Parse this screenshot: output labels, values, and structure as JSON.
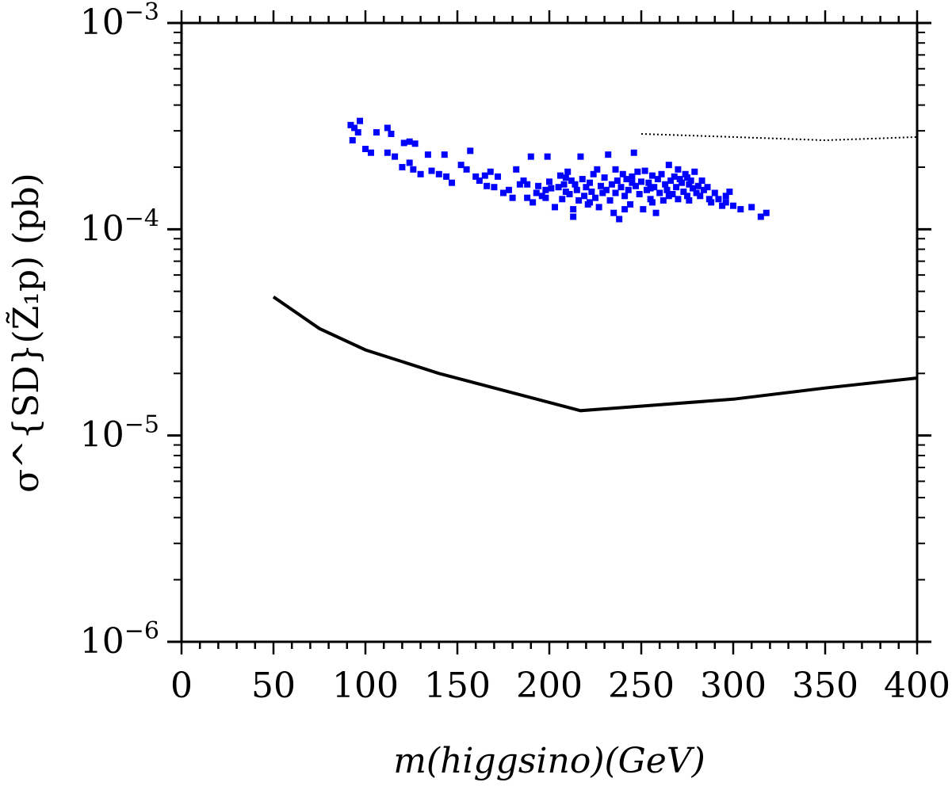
{
  "chart_data": {
    "type": "scatter",
    "xlabel": "m(higgsino)(GeV)",
    "ylabel": "σ^{SD}(Z̃₁p) (pb)",
    "x_ticks": [
      "0",
      "50",
      "100",
      "150",
      "200",
      "250",
      "300",
      "350",
      "400"
    ],
    "y_ticks": [
      {
        "base": "10",
        "exp": "−3",
        "value": 0.001
      },
      {
        "base": "10",
        "exp": "−4",
        "value": 0.0001
      },
      {
        "base": "10",
        "exp": "−5",
        "value": 1e-05
      },
      {
        "base": "10",
        "exp": "−6",
        "value": 1e-06
      }
    ],
    "xlim": [
      0,
      400
    ],
    "ylim": [
      1e-06,
      0.001
    ],
    "yscale": "log",
    "grid": false,
    "colors": {
      "points": "#0000ff",
      "lines": "#000000"
    },
    "series": [
      {
        "style": "scatter",
        "points": [
          [
            92,
            0.00032
          ],
          [
            93,
            0.00027
          ],
          [
            94,
            0.00031
          ],
          [
            97,
            0.000335
          ],
          [
            96,
            0.000295
          ],
          [
            100,
            0.000245
          ],
          [
            103,
            0.000235
          ],
          [
            106,
            0.000295
          ],
          [
            112,
            0.00031
          ],
          [
            114,
            0.00029
          ],
          [
            112,
            0.000235
          ],
          [
            116,
            0.000225
          ],
          [
            121,
            0.000262
          ],
          [
            124,
            0.000266
          ],
          [
            127,
            0.00026
          ],
          [
            120,
            0.0002
          ],
          [
            124,
            0.00021
          ],
          [
            126,
            0.000195
          ],
          [
            130,
            0.000185
          ],
          [
            134,
            0.00023
          ],
          [
            136,
            0.000192
          ],
          [
            140,
            0.000185
          ],
          [
            143,
            0.00023
          ],
          [
            144,
            0.00018
          ],
          [
            147,
            0.000168
          ],
          [
            152,
            0.000205
          ],
          [
            155,
            0.000195
          ],
          [
            157,
            0.00024
          ],
          [
            160,
            0.00018
          ],
          [
            162,
            0.000172
          ],
          [
            165,
            0.000182
          ],
          [
            168,
            0.00019
          ],
          [
            170,
            0.00016
          ],
          [
            172,
            0.00018
          ],
          [
            175,
            0.00015
          ],
          [
            178,
            0.000155
          ],
          [
            180,
            0.000142
          ],
          [
            182,
            0.000195
          ],
          [
            184,
            0.000165
          ],
          [
            186,
            0.000172
          ],
          [
            188,
            0.000142
          ],
          [
            190,
            0.000225
          ],
          [
            191,
            0.000135
          ],
          [
            193,
            0.00015
          ],
          [
            194,
            0.000162
          ],
          [
            196,
            0.000145
          ],
          [
            198,
            0.000155
          ],
          [
            199,
            0.000225
          ],
          [
            200,
            0.00017
          ],
          [
            201,
            0.000158
          ],
          [
            203,
            0.000128
          ],
          [
            205,
            0.00016
          ],
          [
            206,
            0.000182
          ],
          [
            207,
            0.00014
          ],
          [
            208,
            0.000165
          ],
          [
            209,
            0.000152
          ],
          [
            210,
            0.00019
          ],
          [
            211,
            0.000148
          ],
          [
            212,
            0.000172
          ],
          [
            213,
            0.000125
          ],
          [
            213,
            0.000115
          ],
          [
            214,
            0.000165
          ],
          [
            215,
            0.000155
          ],
          [
            216,
            0.000138
          ],
          [
            217,
            0.000225
          ],
          [
            218,
            0.000175
          ],
          [
            219,
            0.000145
          ],
          [
            220,
            0.00016
          ],
          [
            221,
            0.000132
          ],
          [
            222,
            0.000168
          ],
          [
            223,
            0.000152
          ],
          [
            224,
            0.000185
          ],
          [
            225,
            0.000142
          ],
          [
            226,
            0.000195
          ],
          [
            227,
            0.000128
          ],
          [
            228,
            0.000162
          ],
          [
            229,
            0.00015
          ],
          [
            230,
            0.000178
          ],
          [
            231,
            0.000155
          ],
          [
            232,
            0.00023
          ],
          [
            233,
            0.000138
          ],
          [
            234,
            0.000165
          ],
          [
            235,
            0.00012
          ],
          [
            236,
            0.00015
          ],
          [
            237,
            0.000172
          ],
          [
            238,
            0.000112
          ],
          [
            239,
            0.00016
          ],
          [
            240,
            0.000185
          ],
          [
            241,
            0.000145
          ],
          [
            242,
            0.000175
          ],
          [
            243,
            0.000155
          ],
          [
            244,
            0.000132
          ],
          [
            245,
            0.00018
          ],
          [
            246,
            0.000235
          ],
          [
            247,
            0.000162
          ],
          [
            248,
            0.00019
          ],
          [
            249,
            0.000148
          ],
          [
            250,
            0.00017
          ],
          [
            251,
            0.000125
          ],
          [
            252,
            0.000192
          ],
          [
            253,
            0.000155
          ],
          [
            254,
            0.000168
          ],
          [
            255,
            0.00014
          ],
          [
            256,
            0.000182
          ],
          [
            257,
            0.00016
          ],
          [
            258,
            0.00012
          ],
          [
            259,
            0.000175
          ],
          [
            260,
            0.00015
          ],
          [
            261,
            0.000185
          ],
          [
            262,
            0.000138
          ],
          [
            263,
            0.000165
          ],
          [
            264,
            0.000155
          ],
          [
            265,
            0.000205
          ],
          [
            266,
            0.000172
          ],
          [
            267,
            0.000148
          ],
          [
            268,
            0.00018
          ],
          [
            269,
            0.00016
          ],
          [
            270,
            0.00014
          ],
          [
            271,
            0.000175
          ],
          [
            272,
            0.000168
          ],
          [
            273,
            0.000152
          ],
          [
            274,
            0.000185
          ],
          [
            275,
            0.000145
          ],
          [
            276,
            0.000165
          ],
          [
            277,
            0.000172
          ],
          [
            278,
            0.000158
          ],
          [
            279,
            0.00019
          ],
          [
            280,
            0.00015
          ],
          [
            281,
            0.000162
          ],
          [
            282,
            0.000145
          ],
          [
            284,
            0.000155
          ],
          [
            286,
            0.00016
          ],
          [
            287,
            0.00014
          ],
          [
            288,
            0.000135
          ],
          [
            290,
            0.00015
          ],
          [
            292,
            0.00014
          ],
          [
            294,
            0.00013
          ],
          [
            296,
            0.000145
          ],
          [
            298,
            0.000152
          ],
          [
            300,
            0.00013
          ],
          [
            304,
            0.000125
          ],
          [
            310,
            0.000128
          ],
          [
            315,
            0.000115
          ],
          [
            318,
            0.00012
          ],
          [
            236,
            0.000195
          ],
          [
            245,
            0.000168
          ],
          [
            255,
            0.000158
          ],
          [
            265,
            0.000145
          ],
          [
            270,
            0.000195
          ],
          [
            275,
            0.000178
          ],
          [
            222,
            0.000135
          ],
          [
            198,
            0.000142
          ],
          [
            188,
            0.000165
          ],
          [
            209,
            0.000178
          ],
          [
            241,
            0.000125
          ],
          [
            256,
            0.000135
          ],
          [
            276,
            0.000138
          ],
          [
            283,
            0.000172
          ],
          [
            296,
            0.000135
          ],
          [
            166,
            0.000162
          ]
        ]
      },
      {
        "style": "solid-line",
        "points": [
          [
            50,
            4.7e-05
          ],
          [
            75,
            3.3e-05
          ],
          [
            100,
            2.6e-05
          ],
          [
            140,
            2e-05
          ],
          [
            217,
            1.32e-05
          ],
          [
            300,
            1.5e-05
          ],
          [
            350,
            1.7e-05
          ],
          [
            400,
            1.9e-05
          ]
        ]
      },
      {
        "style": "dotted-line",
        "points": [
          [
            250,
            0.00029
          ],
          [
            300,
            0.00028
          ],
          [
            350,
            0.00027
          ],
          [
            375,
            0.000275
          ],
          [
            400,
            0.00028
          ]
        ]
      }
    ]
  }
}
